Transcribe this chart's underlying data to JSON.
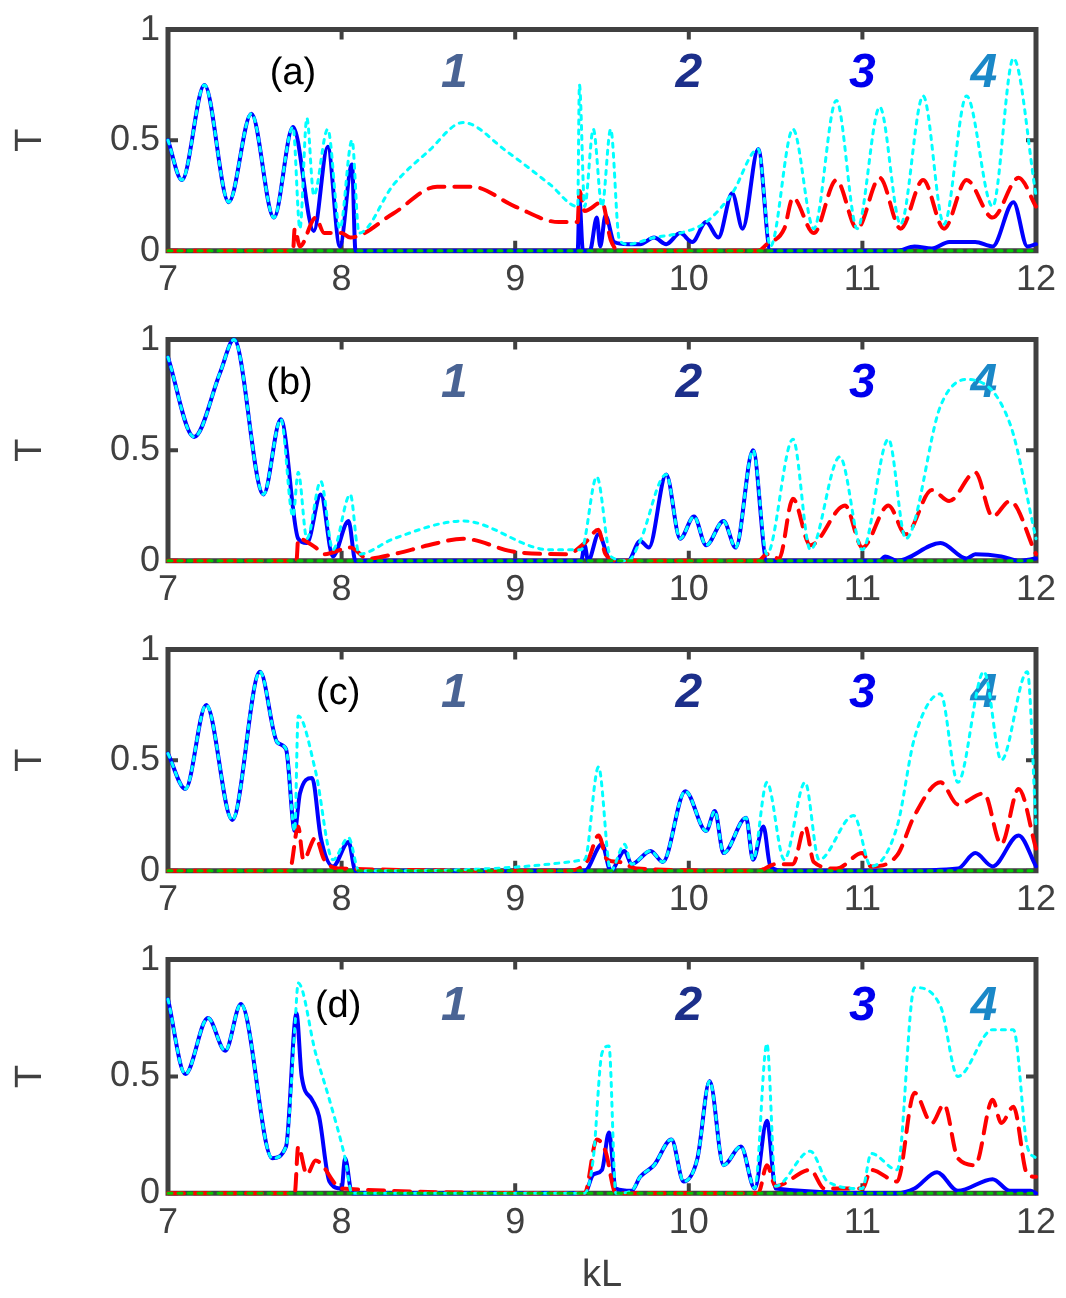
{
  "chart_data": [
    {
      "type": "line",
      "ylabel": "T",
      "xlim": [
        7,
        12
      ],
      "ylim": [
        0,
        1
      ],
      "xticks": [
        7,
        8,
        9,
        10,
        11,
        12
      ],
      "yticks": [
        0,
        0.5,
        1
      ],
      "legend": false,
      "marker": "none",
      "annotations": [
        "(a)",
        "1",
        "2",
        "3",
        "4"
      ],
      "series": [
        {
          "color": "#0000ff",
          "line_style": "solid",
          "x": [
            7.0,
            7.08,
            7.21,
            7.35,
            7.48,
            7.61,
            7.72,
            7.84,
            7.92,
            7.99,
            8.06,
            8.08,
            9.36,
            9.37,
            9.39,
            9.43,
            9.47,
            9.49,
            9.52,
            9.57,
            9.65,
            9.72,
            9.8,
            9.87,
            9.95,
            10.02,
            10.1,
            10.17,
            10.25,
            10.31,
            10.4,
            10.47,
            11.2,
            11.3,
            11.4,
            11.5,
            11.65,
            11.75,
            11.87,
            11.95,
            12.0
          ],
          "values": [
            0.5,
            0.32,
            0.75,
            0.22,
            0.62,
            0.15,
            0.56,
            0.09,
            0.47,
            0.02,
            0.39,
            0,
            0,
            0.23,
            0,
            0,
            0.15,
            0.02,
            0.16,
            0.04,
            0.03,
            0.03,
            0.06,
            0.03,
            0.08,
            0.04,
            0.13,
            0.06,
            0.26,
            0.1,
            0.46,
            0,
            0,
            0.02,
            0.01,
            0.04,
            0.04,
            0.02,
            0.22,
            0.02,
            0.03
          ]
        },
        {
          "color": "#ff0000",
          "line_style": "dashed",
          "x": [
            7.0,
            7.72,
            7.73,
            7.76,
            7.85,
            7.9,
            8.0,
            8.05,
            8.3,
            8.55,
            8.75,
            9.0,
            9.25,
            9.36,
            9.37,
            9.4,
            9.5,
            9.55,
            9.6,
            10.4,
            10.45,
            10.55,
            10.6,
            10.72,
            10.85,
            10.97,
            11.1,
            11.22,
            11.35,
            11.47,
            11.6,
            11.75,
            11.9,
            12.0
          ],
          "values": [
            0,
            0,
            0.1,
            0.02,
            0.15,
            0.08,
            0.08,
            0.06,
            0.17,
            0.29,
            0.29,
            0.2,
            0.13,
            0.13,
            0.27,
            0.18,
            0.22,
            0.05,
            0,
            0,
            0.03,
            0.1,
            0.24,
            0.08,
            0.32,
            0.1,
            0.33,
            0.1,
            0.32,
            0.1,
            0.32,
            0.15,
            0.33,
            0.2
          ]
        },
        {
          "color": "#00ffff",
          "line_style": "dotted",
          "x": [
            7.0,
            7.08,
            7.21,
            7.35,
            7.48,
            7.61,
            7.72,
            7.76,
            7.8,
            7.84,
            7.92,
            7.99,
            8.06,
            8.1,
            8.3,
            8.5,
            8.7,
            8.95,
            9.2,
            9.36,
            9.37,
            9.4,
            9.45,
            9.5,
            9.55,
            9.6,
            9.65,
            9.8,
            9.95,
            10.1,
            10.25,
            10.4,
            10.47,
            10.6,
            10.72,
            10.85,
            10.97,
            11.1,
            11.22,
            11.35,
            11.47,
            11.6,
            11.75,
            11.87,
            12.0
          ],
          "values": [
            0.5,
            0.32,
            0.75,
            0.22,
            0.62,
            0.15,
            0.56,
            0.1,
            0.6,
            0.25,
            0.55,
            0.1,
            0.5,
            0.08,
            0.3,
            0.45,
            0.58,
            0.45,
            0.3,
            0.2,
            0.75,
            0.2,
            0.55,
            0.2,
            0.55,
            0.05,
            0.03,
            0.06,
            0.08,
            0.13,
            0.26,
            0.46,
            0.02,
            0.55,
            0.1,
            0.68,
            0.1,
            0.65,
            0.12,
            0.7,
            0.12,
            0.7,
            0.2,
            0.87,
            0.25
          ]
        },
        {
          "color": "#00cc00",
          "line_style": "dotted",
          "x": [
            7,
            12
          ],
          "values": [
            0,
            0
          ]
        }
      ]
    },
    {
      "type": "line",
      "ylabel": "T",
      "xlim": [
        7,
        12
      ],
      "ylim": [
        0,
        1
      ],
      "xticks": [
        7,
        8,
        9,
        10,
        11,
        12
      ],
      "yticks": [
        0,
        0.5,
        1
      ],
      "legend": false,
      "marker": "none",
      "annotations": [
        "(b)",
        "1",
        "2",
        "3",
        "4"
      ],
      "series": [
        {
          "color": "#0000ff",
          "line_style": "solid",
          "x": [
            7.0,
            7.15,
            7.3,
            7.38,
            7.55,
            7.65,
            7.75,
            7.8,
            7.88,
            7.95,
            8.04,
            8.08,
            9.38,
            9.4,
            9.42,
            9.48,
            9.55,
            9.65,
            9.72,
            9.77,
            9.87,
            9.95,
            10.03,
            10.1,
            10.2,
            10.27,
            10.37,
            10.45,
            11.1,
            11.13,
            11.2,
            11.45,
            11.6,
            11.65,
            11.8,
            11.9,
            12.0
          ],
          "values": [
            0.92,
            0.56,
            0.85,
            1.0,
            0.3,
            0.64,
            0.1,
            0.08,
            0.3,
            0.02,
            0.18,
            0,
            0,
            0.07,
            0,
            0.12,
            0,
            0,
            0.09,
            0.06,
            0.39,
            0.1,
            0.2,
            0.07,
            0.18,
            0.06,
            0.5,
            0,
            0,
            0.02,
            0,
            0.08,
            0.01,
            0.03,
            0.02,
            0,
            0.01
          ]
        },
        {
          "color": "#ff0000",
          "line_style": "dashed",
          "x": [
            7.0,
            7.74,
            7.75,
            7.85,
            7.9,
            8.05,
            8.15,
            8.3,
            8.5,
            8.7,
            9.0,
            9.3,
            9.4,
            9.48,
            9.52,
            9.6,
            10.4,
            10.45,
            10.52,
            10.6,
            10.7,
            10.9,
            11.0,
            11.15,
            11.25,
            11.4,
            11.5,
            11.65,
            11.75,
            11.85,
            12.0
          ],
          "values": [
            0,
            0,
            0.1,
            0.06,
            0.03,
            0.06,
            0.01,
            0.03,
            0.07,
            0.1,
            0.04,
            0.03,
            0.08,
            0.14,
            0.03,
            0,
            0,
            0.03,
            0.01,
            0.28,
            0.07,
            0.25,
            0.06,
            0.25,
            0.12,
            0.32,
            0.27,
            0.4,
            0.2,
            0.27,
            0.03
          ]
        },
        {
          "color": "#00ffff",
          "line_style": "dotted",
          "x": [
            7.0,
            7.15,
            7.3,
            7.38,
            7.55,
            7.65,
            7.72,
            7.75,
            7.8,
            7.88,
            7.95,
            8.05,
            8.1,
            8.3,
            8.7,
            9.2,
            9.38,
            9.47,
            9.55,
            9.65,
            9.72,
            9.87,
            9.95,
            10.03,
            10.1,
            10.2,
            10.27,
            10.37,
            10.45,
            10.6,
            10.7,
            10.87,
            11.0,
            11.15,
            11.25,
            11.45,
            11.6,
            11.85,
            12.0
          ],
          "values": [
            0.92,
            0.56,
            0.85,
            1.0,
            0.3,
            0.64,
            0.2,
            0.4,
            0.1,
            0.36,
            0.05,
            0.3,
            0.03,
            0.1,
            0.18,
            0.05,
            0.05,
            0.38,
            0.02,
            0,
            0.09,
            0.39,
            0.1,
            0.2,
            0.07,
            0.18,
            0.06,
            0.5,
            0.03,
            0.55,
            0.05,
            0.47,
            0.05,
            0.55,
            0.1,
            0.7,
            0.82,
            0.62,
            0.1
          ]
        },
        {
          "color": "#00cc00",
          "line_style": "dotted",
          "x": [
            7,
            12
          ],
          "values": [
            0,
            0
          ]
        }
      ]
    },
    {
      "type": "line",
      "ylabel": "T",
      "xlim": [
        7,
        12
      ],
      "ylim": [
        0,
        1
      ],
      "xticks": [
        7,
        8,
        9,
        10,
        11,
        12
      ],
      "yticks": [
        0,
        0.5,
        1
      ],
      "legend": false,
      "marker": "none",
      "annotations": [
        "(c)",
        "1",
        "2",
        "3",
        "4"
      ],
      "series": [
        {
          "color": "#0000ff",
          "line_style": "solid",
          "x": [
            7.0,
            7.1,
            7.22,
            7.37,
            7.53,
            7.63,
            7.68,
            7.73,
            7.76,
            7.83,
            7.88,
            7.95,
            8.04,
            8.08,
            9.4,
            9.5,
            9.55,
            9.63,
            9.67,
            9.78,
            9.85,
            9.98,
            10.1,
            10.15,
            10.2,
            10.33,
            10.37,
            10.43,
            10.47,
            10.55,
            11.2,
            11.55,
            11.65,
            11.75,
            11.9,
            12.0
          ],
          "values": [
            0.53,
            0.37,
            0.75,
            0.23,
            0.9,
            0.58,
            0.55,
            0.18,
            0.35,
            0.42,
            0.15,
            0.02,
            0.13,
            0,
            0,
            0.12,
            0,
            0.09,
            0.03,
            0.09,
            0.04,
            0.36,
            0.18,
            0.27,
            0.08,
            0.24,
            0.05,
            0.2,
            0.02,
            0,
            0,
            0.01,
            0.08,
            0.02,
            0.16,
            0.02
          ]
        },
        {
          "color": "#ff0000",
          "line_style": "dashed",
          "x": [
            7.0,
            7.7,
            7.75,
            7.78,
            7.85,
            7.9,
            8.0,
            9.3,
            9.42,
            9.48,
            9.53,
            9.6,
            9.7,
            10.4,
            10.5,
            10.6,
            10.67,
            10.72,
            10.85,
            11.0,
            11.05,
            11.2,
            11.3,
            11.45,
            11.55,
            11.7,
            11.8,
            11.9,
            12.0
          ],
          "values": [
            0,
            0,
            0.2,
            0.05,
            0.15,
            0.05,
            0.01,
            0,
            0.05,
            0.16,
            0.05,
            0.04,
            0.01,
            0,
            0.03,
            0.03,
            0.2,
            0.04,
            0.01,
            0.08,
            0.02,
            0.07,
            0.25,
            0.4,
            0.3,
            0.35,
            0.12,
            0.37,
            0.1
          ]
        },
        {
          "color": "#00ffff",
          "line_style": "dotted",
          "x": [
            7.0,
            7.1,
            7.22,
            7.37,
            7.53,
            7.63,
            7.68,
            7.73,
            7.75,
            7.85,
            7.95,
            8.04,
            8.1,
            9.4,
            9.48,
            9.55,
            9.63,
            9.67,
            9.78,
            9.85,
            9.98,
            10.1,
            10.15,
            10.2,
            10.33,
            10.37,
            10.45,
            10.55,
            10.67,
            10.75,
            10.95,
            11.05,
            11.2,
            11.3,
            11.45,
            11.55,
            11.7,
            11.8,
            11.95,
            12.0
          ],
          "values": [
            0.53,
            0.37,
            0.75,
            0.23,
            0.9,
            0.58,
            0.55,
            0.18,
            0.7,
            0.45,
            0.05,
            0.15,
            0,
            0.05,
            0.47,
            0,
            0.12,
            0.03,
            0.09,
            0.04,
            0.36,
            0.18,
            0.27,
            0.08,
            0.24,
            0.05,
            0.4,
            0.05,
            0.4,
            0.05,
            0.25,
            0.02,
            0.2,
            0.6,
            0.8,
            0.4,
            0.9,
            0.5,
            0.9,
            0.2
          ]
        },
        {
          "color": "#00cc00",
          "line_style": "dotted",
          "x": [
            7,
            12
          ],
          "values": [
            0,
            0
          ]
        }
      ]
    },
    {
      "type": "line",
      "xlabel": "kL",
      "ylabel": "T",
      "xlim": [
        7,
        12
      ],
      "ylim": [
        0,
        1
      ],
      "xticks": [
        7,
        8,
        9,
        10,
        11,
        12
      ],
      "yticks": [
        0,
        0.5,
        1
      ],
      "legend": false,
      "marker": "none",
      "annotations": [
        "(d)",
        "1",
        "2",
        "3",
        "4"
      ],
      "series": [
        {
          "color": "#0000ff",
          "line_style": "solid",
          "x": [
            7.0,
            7.1,
            7.23,
            7.33,
            7.42,
            7.6,
            7.68,
            7.74,
            7.77,
            7.83,
            7.87,
            7.93,
            8.0,
            8.02,
            8.06,
            9.4,
            9.45,
            9.5,
            9.54,
            9.58,
            9.67,
            9.72,
            9.8,
            9.9,
            9.97,
            10.05,
            10.12,
            10.2,
            10.3,
            10.38,
            10.45,
            10.5,
            11.2,
            11.3,
            11.43,
            11.55,
            11.75,
            11.85,
            11.97,
            12.0
          ],
          "values": [
            0.83,
            0.51,
            0.75,
            0.61,
            0.81,
            0.15,
            0.2,
            0.77,
            0.5,
            0.4,
            0.33,
            0.05,
            0.02,
            0.15,
            0,
            0,
            0.08,
            0.1,
            0.26,
            0.02,
            0.01,
            0.07,
            0.12,
            0.23,
            0.05,
            0.15,
            0.48,
            0.12,
            0.2,
            0.02,
            0.31,
            0.02,
            0,
            0.02,
            0.09,
            0.01,
            0.06,
            0.01,
            0.01,
            0
          ]
        },
        {
          "color": "#ff0000",
          "line_style": "dashed",
          "x": [
            7.0,
            7.73,
            7.75,
            7.8,
            7.85,
            8.0,
            9.4,
            9.47,
            9.52,
            9.58,
            10.4,
            10.45,
            10.5,
            10.7,
            10.78,
            11.0,
            11.05,
            11.2,
            11.3,
            11.4,
            11.47,
            11.55,
            11.65,
            11.75,
            11.8,
            11.87,
            11.95,
            12.0
          ],
          "values": [
            0,
            0,
            0.2,
            0.08,
            0.14,
            0.02,
            0,
            0.23,
            0.18,
            0,
            0,
            0.12,
            0.03,
            0.1,
            0.02,
            0.02,
            0.1,
            0.05,
            0.43,
            0.3,
            0.38,
            0.15,
            0.12,
            0.4,
            0.3,
            0.37,
            0.08,
            0.07
          ]
        },
        {
          "color": "#00ffff",
          "line_style": "dotted",
          "x": [
            7.0,
            7.1,
            7.23,
            7.33,
            7.42,
            7.6,
            7.68,
            7.73,
            7.75,
            7.85,
            7.93,
            8.02,
            8.06,
            9.4,
            9.45,
            9.5,
            9.54,
            9.58,
            9.67,
            9.72,
            9.8,
            9.9,
            9.97,
            10.05,
            10.12,
            10.2,
            10.3,
            10.38,
            10.45,
            10.5,
            10.7,
            10.8,
            11.0,
            11.05,
            11.2,
            11.3,
            11.45,
            11.55,
            11.75,
            11.87,
            11.95,
            12.0
          ],
          "values": [
            0.83,
            0.51,
            0.75,
            0.61,
            0.81,
            0.15,
            0.2,
            0.7,
            0.9,
            0.6,
            0.4,
            0.15,
            0,
            0,
            0.15,
            0.6,
            0.63,
            0,
            0.01,
            0.07,
            0.12,
            0.23,
            0.05,
            0.15,
            0.48,
            0.12,
            0.2,
            0.02,
            0.64,
            0.03,
            0.18,
            0.05,
            0.02,
            0.17,
            0.1,
            0.88,
            0.8,
            0.5,
            0.7,
            0.7,
            0.2,
            0.15
          ]
        },
        {
          "color": "#00cc00",
          "line_style": "dotted",
          "x": [
            7,
            12
          ],
          "values": [
            0,
            0
          ]
        }
      ]
    }
  ]
}
